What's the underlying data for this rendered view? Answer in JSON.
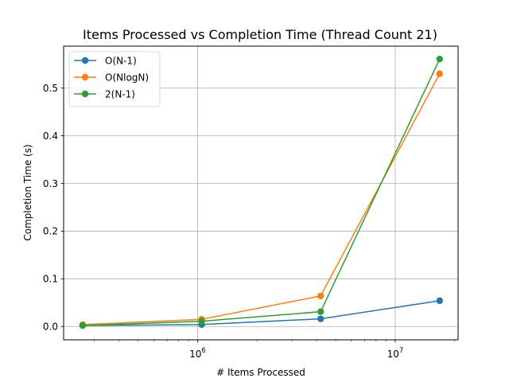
{
  "chart_data": {
    "type": "line",
    "title": "Items Processed vs Completion Time (Thread Count 21)",
    "xlabel": "# Items Processed",
    "ylabel": "Completion Time (s)",
    "x_scale": "log",
    "xlim": [
      210000,
      20800000
    ],
    "ylim": [
      -0.028,
      0.588
    ],
    "x_major_ticks": [
      1000000,
      10000000
    ],
    "x_major_tick_labels": [
      {
        "base": "10",
        "exp": "6"
      },
      {
        "base": "10",
        "exp": "7"
      }
    ],
    "y_ticks": [
      0.0,
      0.1,
      0.2,
      0.3,
      0.4,
      0.5
    ],
    "y_tick_labels": [
      "0.0",
      "0.1",
      "0.2",
      "0.3",
      "0.4",
      "0.5"
    ],
    "grid": true,
    "legend_position": "upper-left",
    "x": [
      262144,
      1048576,
      4194304,
      16777216
    ],
    "series": [
      {
        "name": "O(N-1)",
        "color": "#1f77b4",
        "values": [
          0.002,
          0.004,
          0.016,
          0.054
        ]
      },
      {
        "name": "O(NlogN)",
        "color": "#ff7f0e",
        "values": [
          0.004,
          0.015,
          0.064,
          0.53
        ]
      },
      {
        "name": "2(N-1)",
        "color": "#2ca02c",
        "values": [
          0.002,
          0.011,
          0.031,
          0.561
        ]
      }
    ]
  }
}
